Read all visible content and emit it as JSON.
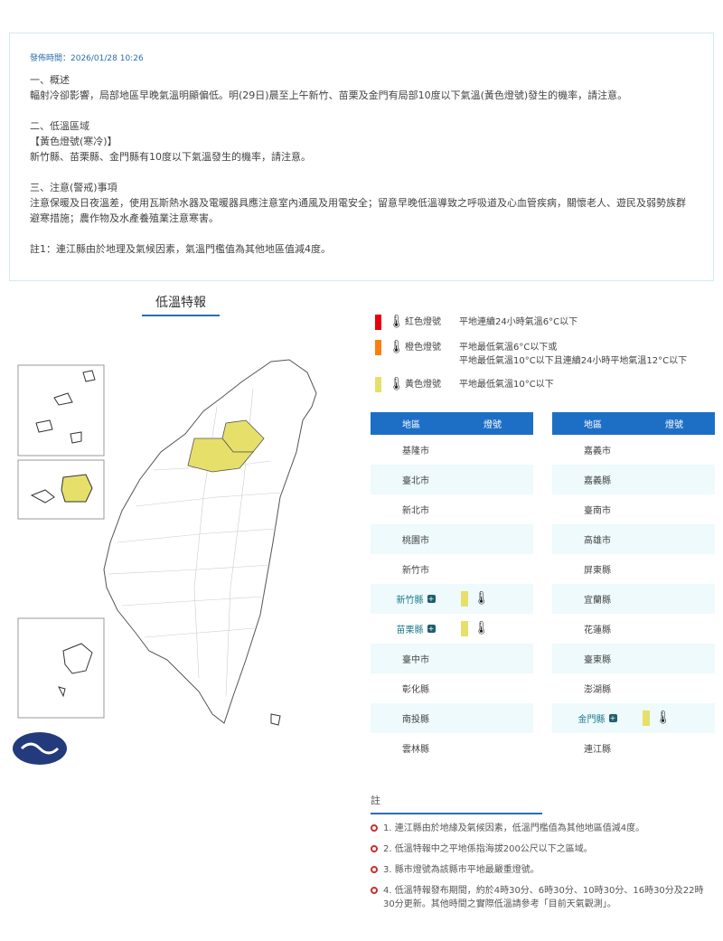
{
  "bulletin": {
    "publish_time": "發佈時間：2026/01/28 10:26",
    "sec1_title": "一、概述",
    "sec1_text": "輻射冷卻影響，局部地區早晚氣溫明顯偏低。明(29日)晨至上午新竹、苗栗及金門有局部10度以下氣溫(黃色燈號)發生的機率，請注意。",
    "sec2_title": "二、低溫區域",
    "sec2_level": "【黃色燈號(寒冷)】",
    "sec2_text": "新竹縣、苗栗縣、金門縣有10度以下氣溫發生的機率，請注意。",
    "sec3_title": "三、注意(警戒)事項",
    "sec3_text": "注意保暖及日夜溫差，使用瓦斯熱水器及電暖器具應注意室內通風及用電安全；留意早晚低溫導致之呼吸道及心血管疾病，關懷老人、遊民及弱勢族群避寒措施；農作物及水產養殖業注意寒害。",
    "note1": "註1：連江縣由於地理及氣候因素，氣溫門檻值為其他地區值減4度。"
  },
  "map": {
    "title": "低溫特報",
    "highlighted": [
      "新竹縣",
      "苗栗縣",
      "金門縣"
    ],
    "highlight_color": "#e6e06a"
  },
  "legend": [
    {
      "color": "#e8000b",
      "name": "紅色燈號",
      "desc": [
        "平地連續24小時氣溫6°C以下"
      ]
    },
    {
      "color": "#ff7f0e",
      "name": "橙色燈號",
      "desc": [
        "平地最低氣溫6°C以下或",
        "平地最低氣溫10°C以下且連續24小時平地氣溫12°C以下"
      ]
    },
    {
      "color": "#e6e06a",
      "name": "黃色燈號",
      "desc": [
        "平地最低氣溫10°C以下"
      ]
    }
  ],
  "table": {
    "col_region": "地區",
    "col_light": "燈號",
    "left": [
      {
        "name": "基隆市"
      },
      {
        "name": "臺北市"
      },
      {
        "name": "新北市"
      },
      {
        "name": "桃園市"
      },
      {
        "name": "新竹市"
      },
      {
        "name": "新竹縣",
        "level": "yellow"
      },
      {
        "name": "苗栗縣",
        "level": "yellow"
      },
      {
        "name": "臺中市"
      },
      {
        "name": "彰化縣"
      },
      {
        "name": "南投縣"
      },
      {
        "name": "雲林縣"
      }
    ],
    "right": [
      {
        "name": "嘉義市"
      },
      {
        "name": "嘉義縣"
      },
      {
        "name": "臺南市"
      },
      {
        "name": "高雄市"
      },
      {
        "name": "屏東縣"
      },
      {
        "name": "宜蘭縣"
      },
      {
        "name": "花蓮縣"
      },
      {
        "name": "臺東縣"
      },
      {
        "name": "澎湖縣"
      },
      {
        "name": "金門縣",
        "level": "yellow"
      },
      {
        "name": "連江縣"
      }
    ]
  },
  "notes": {
    "title": "註",
    "items": [
      "1. 連江縣由於地緣及氣候因素，低溫門檻值為其他地區值減4度。",
      "2. 低溫特報中之平地係指海拔200公尺以下之區域。",
      "3. 縣市燈號為該縣市平地最嚴重燈號。",
      "4. 低溫特報發布期間，約於4時30分、6時30分、10時30分、16時30分及22時30分更新。其他時間之實際低溫請參考「目前天氣觀測」。"
    ]
  }
}
